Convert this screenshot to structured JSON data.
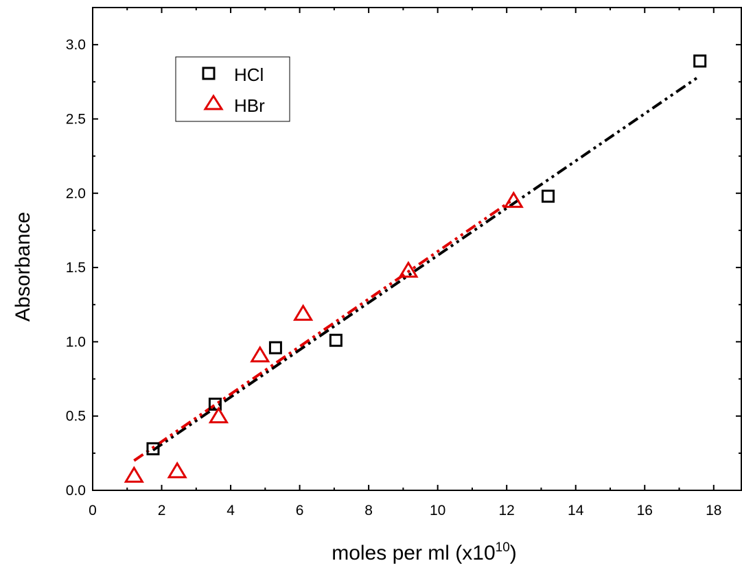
{
  "chart_data": {
    "type": "scatter",
    "xlabel": "moles per ml (x10",
    "xlabel_sup": "10",
    "xlabel_end": ")",
    "ylabel": "Absorbance",
    "xlim": [
      0,
      18.8
    ],
    "ylim": [
      0,
      3.25
    ],
    "xticks": [
      "0",
      "2",
      "4",
      "6",
      "8",
      "10",
      "12",
      "14",
      "16",
      "18"
    ],
    "yticks": [
      "0.0",
      "0.5",
      "1.0",
      "1.5",
      "2.0",
      "2.5",
      "3.0"
    ],
    "legend_position": "top-left",
    "series": [
      {
        "name": "HCl",
        "marker": "square",
        "color": "#000000",
        "x": [
          1.75,
          3.55,
          5.3,
          7.05,
          13.2,
          17.6
        ],
        "y": [
          0.28,
          0.58,
          0.96,
          1.01,
          1.98,
          2.89
        ],
        "fit": {
          "x": [
            1.75,
            17.6
          ],
          "y": [
            0.27,
            2.79
          ],
          "style": "dash-dot-dot"
        }
      },
      {
        "name": "HBr",
        "marker": "triangle",
        "color": "#e00000",
        "x": [
          1.2,
          2.45,
          3.65,
          4.85,
          6.1,
          9.15,
          12.2
        ],
        "y": [
          0.1,
          0.13,
          0.5,
          0.91,
          1.19,
          1.48,
          1.95
        ],
        "fit": {
          "x": [
            1.2,
            12.2
          ],
          "y": [
            0.2,
            1.96
          ],
          "style": "dash-dot-dot"
        }
      }
    ]
  }
}
